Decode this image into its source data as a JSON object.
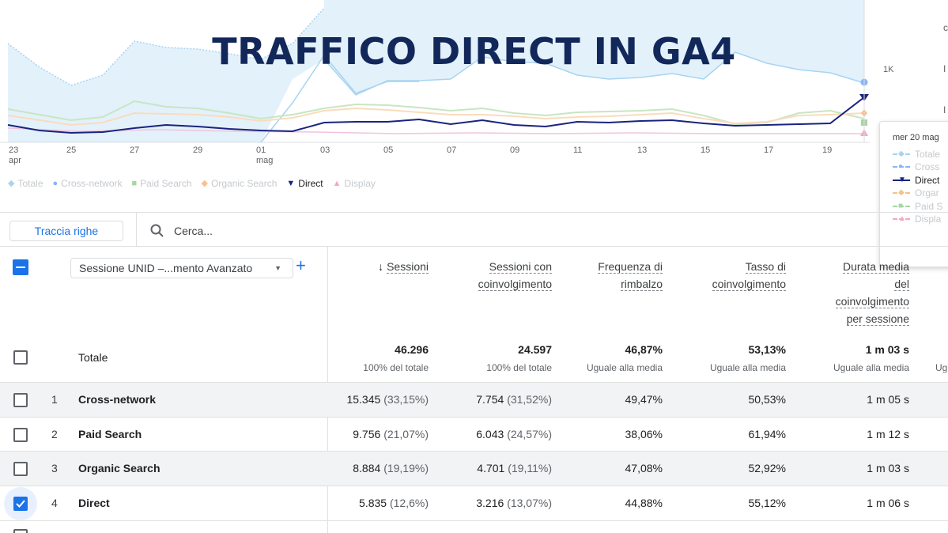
{
  "overlay_title": "TRAFFICO DIRECT IN GA4",
  "chart": {
    "y_axis_label": "1K",
    "x_ticks": [
      {
        "label": "23",
        "sub": "apr"
      },
      {
        "label": "25",
        "sub": ""
      },
      {
        "label": "27",
        "sub": ""
      },
      {
        "label": "29",
        "sub": ""
      },
      {
        "label": "01",
        "sub": "mag"
      },
      {
        "label": "03",
        "sub": ""
      },
      {
        "label": "05",
        "sub": ""
      },
      {
        "label": "07",
        "sub": ""
      },
      {
        "label": "09",
        "sub": ""
      },
      {
        "label": "11",
        "sub": ""
      },
      {
        "label": "13",
        "sub": ""
      },
      {
        "label": "15",
        "sub": ""
      },
      {
        "label": "17",
        "sub": ""
      },
      {
        "label": "19",
        "sub": ""
      }
    ],
    "colors": {
      "totale": "#a8d4f2",
      "cross_network": "#8ab4f8",
      "paid_search": "#a8d5a2",
      "organic_search": "#f6c08f",
      "direct": "#1a237e",
      "display": "#f4a7c8"
    }
  },
  "legend": [
    {
      "label": "Totale",
      "icon": "diamond-icon",
      "color": "#a8d4f2",
      "active": false
    },
    {
      "label": "Cross-network",
      "icon": "circle-icon",
      "color": "#8ab4f8",
      "active": false
    },
    {
      "label": "Paid Search",
      "icon": "square-icon",
      "color": "#a8d5a2",
      "active": false
    },
    {
      "label": "Organic Search",
      "icon": "diamond-icon",
      "color": "#f6c08f",
      "active": false
    },
    {
      "label": "Direct",
      "icon": "triangle-down-icon",
      "color": "#1a237e",
      "active": true
    },
    {
      "label": "Display",
      "icon": "triangle-up-icon",
      "color": "#f4a7c8",
      "active": false
    }
  ],
  "tooltip": {
    "date": "mer 20 mag",
    "rows": [
      {
        "label": "Totale",
        "color": "#a8d4f2",
        "mark": "◆",
        "active": false
      },
      {
        "label": "Cross",
        "color": "#8ab4f8",
        "mark": "●",
        "active": false
      },
      {
        "label": "Direct",
        "color": "#1a237e",
        "mark": "▼",
        "active": true
      },
      {
        "label": "Orgar",
        "color": "#f6c08f",
        "mark": "◆",
        "active": false
      },
      {
        "label": "Paid S",
        "color": "#a8d5a2",
        "mark": "■",
        "active": false
      },
      {
        "label": "Displa",
        "color": "#f4a7c8",
        "mark": "▲",
        "active": false
      }
    ]
  },
  "toolbar": {
    "plot_rows_label": "Traccia righe",
    "search_placeholder": "Cerca..."
  },
  "table": {
    "dimension_label": "Sessione UNID –...mento Avanzato",
    "headers": {
      "sessions": "Sessioni",
      "engaged_sessions": [
        "Sessioni con",
        "coinvolgimento"
      ],
      "bounce_rate": [
        "Frequenza di",
        "rimbalzo"
      ],
      "engagement_rate": [
        "Tasso di",
        "coinvolgimento"
      ],
      "avg_engagement": [
        "Durata media",
        "del",
        "coinvolgimento",
        "per sessione"
      ]
    },
    "totals": {
      "label": "Totale",
      "sessions": "46.296",
      "sessions_sub": "100% del totale",
      "engaged_sessions": "24.597",
      "engaged_sessions_sub": "100% del totale",
      "bounce_rate": "46,87%",
      "bounce_rate_sub": "Uguale alla media",
      "engagement_rate": "53,13%",
      "engagement_rate_sub": "Uguale alla media",
      "avg_engagement": "1 m 03 s",
      "avg_engagement_sub": "Uguale alla media",
      "cut_sub": "Ug"
    },
    "rows": [
      {
        "rank": "1",
        "name": "Cross-network",
        "sessions": "15.345",
        "sessions_pct": "(33,15%)",
        "engaged": "7.754",
        "engaged_pct": "(31,52%)",
        "bounce": "49,47%",
        "engagement_rate": "50,53%",
        "avg": "1 m 05 s",
        "checked": false
      },
      {
        "rank": "2",
        "name": "Paid Search",
        "sessions": "9.756",
        "sessions_pct": "(21,07%)",
        "engaged": "6.043",
        "engaged_pct": "(24,57%)",
        "bounce": "38,06%",
        "engagement_rate": "61,94%",
        "avg": "1 m 12 s",
        "checked": false
      },
      {
        "rank": "3",
        "name": "Organic Search",
        "sessions": "8.884",
        "sessions_pct": "(19,19%)",
        "engaged": "4.701",
        "engaged_pct": "(19,11%)",
        "bounce": "47,08%",
        "engagement_rate": "52,92%",
        "avg": "1 m 03 s",
        "checked": false
      },
      {
        "rank": "4",
        "name": "Direct",
        "sessions": "5.835",
        "sessions_pct": "(12,6%)",
        "engaged": "3.216",
        "engaged_pct": "(13,07%)",
        "bounce": "44,88%",
        "engagement_rate": "55,12%",
        "avg": "1 m 06 s",
        "checked": true
      }
    ]
  }
}
